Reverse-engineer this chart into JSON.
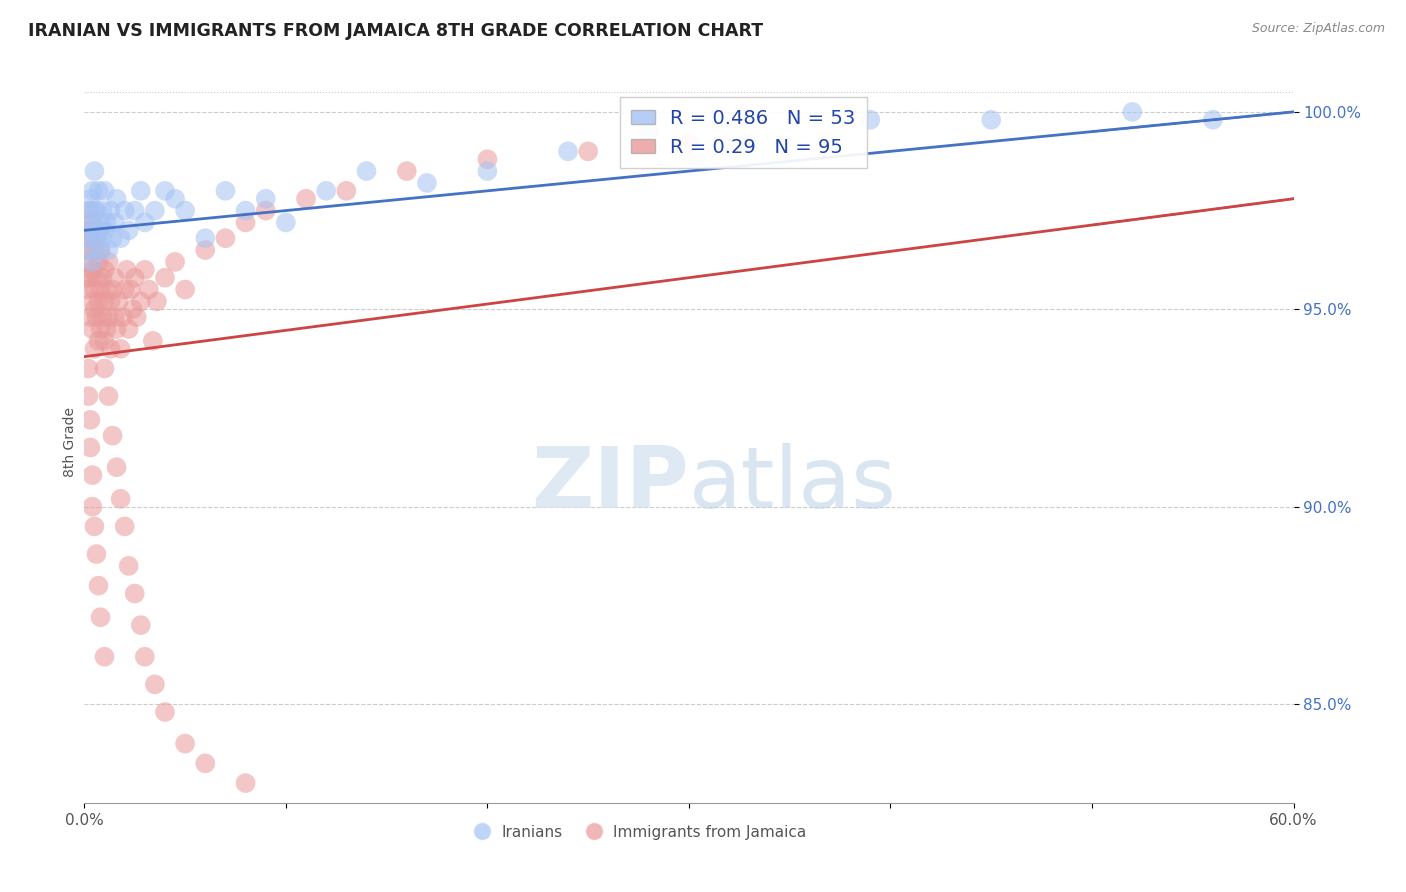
{
  "title": "IRANIAN VS IMMIGRANTS FROM JAMAICA 8TH GRADE CORRELATION CHART",
  "source_text": "Source: ZipAtlas.com",
  "ylabel": "8th Grade",
  "xmin": 0.0,
  "xmax": 0.6,
  "ymin": 0.825,
  "ymax": 1.008,
  "yticks": [
    0.85,
    0.9,
    0.95,
    1.0
  ],
  "ytick_labels": [
    "85.0%",
    "90.0%",
    "95.0%",
    "100.0%"
  ],
  "xtick_positions": [
    0.0,
    0.1,
    0.2,
    0.3,
    0.4,
    0.5,
    0.6
  ],
  "xtick_labels": [
    "0.0%",
    "",
    "",
    "",
    "",
    "",
    "60.0%"
  ],
  "iranian_color": "#a4c2f4",
  "jamaican_color": "#ea9999",
  "trend_blue": "#4472c4",
  "trend_pink": "#cc4444",
  "R_iranian": 0.486,
  "N_iranian": 53,
  "R_jamaican": 0.29,
  "N_jamaican": 95,
  "iranians_label": "Iranians",
  "jamaicans_label": "Immigrants from Jamaica",
  "watermark_zip": "ZIP",
  "watermark_atlas": "atlas",
  "iranians_x": [
    0.001,
    0.002,
    0.002,
    0.003,
    0.003,
    0.003,
    0.004,
    0.004,
    0.005,
    0.005,
    0.005,
    0.006,
    0.006,
    0.007,
    0.007,
    0.008,
    0.008,
    0.009,
    0.009,
    0.01,
    0.01,
    0.011,
    0.012,
    0.013,
    0.014,
    0.015,
    0.016,
    0.018,
    0.02,
    0.022,
    0.025,
    0.028,
    0.03,
    0.035,
    0.04,
    0.045,
    0.05,
    0.06,
    0.07,
    0.08,
    0.09,
    0.1,
    0.12,
    0.14,
    0.17,
    0.2,
    0.24,
    0.28,
    0.33,
    0.39,
    0.45,
    0.52,
    0.56
  ],
  "iranians_y": [
    0.972,
    0.968,
    0.975,
    0.965,
    0.97,
    0.978,
    0.962,
    0.98,
    0.97,
    0.975,
    0.985,
    0.968,
    0.975,
    0.97,
    0.98,
    0.972,
    0.965,
    0.968,
    0.975,
    0.97,
    0.98,
    0.972,
    0.965,
    0.975,
    0.968,
    0.972,
    0.978,
    0.968,
    0.975,
    0.97,
    0.975,
    0.98,
    0.972,
    0.975,
    0.98,
    0.978,
    0.975,
    0.968,
    0.98,
    0.975,
    0.978,
    0.972,
    0.98,
    0.985,
    0.982,
    0.985,
    0.99,
    0.995,
    0.992,
    0.998,
    0.998,
    1.0,
    0.998
  ],
  "jamaicans_x": [
    0.001,
    0.001,
    0.002,
    0.002,
    0.002,
    0.003,
    0.003,
    0.003,
    0.003,
    0.004,
    0.004,
    0.004,
    0.004,
    0.005,
    0.005,
    0.005,
    0.005,
    0.006,
    0.006,
    0.006,
    0.007,
    0.007,
    0.007,
    0.008,
    0.008,
    0.008,
    0.009,
    0.009,
    0.01,
    0.01,
    0.01,
    0.011,
    0.011,
    0.012,
    0.012,
    0.013,
    0.013,
    0.014,
    0.015,
    0.015,
    0.016,
    0.017,
    0.018,
    0.019,
    0.02,
    0.021,
    0.022,
    0.023,
    0.024,
    0.025,
    0.026,
    0.028,
    0.03,
    0.032,
    0.034,
    0.036,
    0.04,
    0.045,
    0.05,
    0.06,
    0.07,
    0.08,
    0.09,
    0.11,
    0.13,
    0.16,
    0.2,
    0.25,
    0.3,
    0.002,
    0.002,
    0.003,
    0.003,
    0.004,
    0.004,
    0.005,
    0.006,
    0.007,
    0.008,
    0.01,
    0.01,
    0.012,
    0.014,
    0.016,
    0.018,
    0.02,
    0.022,
    0.025,
    0.028,
    0.03,
    0.035,
    0.04,
    0.05,
    0.06,
    0.08
  ],
  "jamaicans_y": [
    0.958,
    0.965,
    0.955,
    0.962,
    0.97,
    0.948,
    0.958,
    0.968,
    0.975,
    0.952,
    0.96,
    0.945,
    0.972,
    0.955,
    0.965,
    0.94,
    0.95,
    0.958,
    0.948,
    0.968,
    0.952,
    0.962,
    0.942,
    0.955,
    0.945,
    0.965,
    0.948,
    0.958,
    0.952,
    0.942,
    0.96,
    0.945,
    0.955,
    0.948,
    0.962,
    0.952,
    0.94,
    0.955,
    0.948,
    0.958,
    0.945,
    0.952,
    0.94,
    0.948,
    0.955,
    0.96,
    0.945,
    0.955,
    0.95,
    0.958,
    0.948,
    0.952,
    0.96,
    0.955,
    0.942,
    0.952,
    0.958,
    0.962,
    0.955,
    0.965,
    0.968,
    0.972,
    0.975,
    0.978,
    0.98,
    0.985,
    0.988,
    0.99,
    0.992,
    0.935,
    0.928,
    0.922,
    0.915,
    0.908,
    0.9,
    0.895,
    0.888,
    0.88,
    0.872,
    0.862,
    0.935,
    0.928,
    0.918,
    0.91,
    0.902,
    0.895,
    0.885,
    0.878,
    0.87,
    0.862,
    0.855,
    0.848,
    0.84,
    0.835,
    0.83
  ]
}
